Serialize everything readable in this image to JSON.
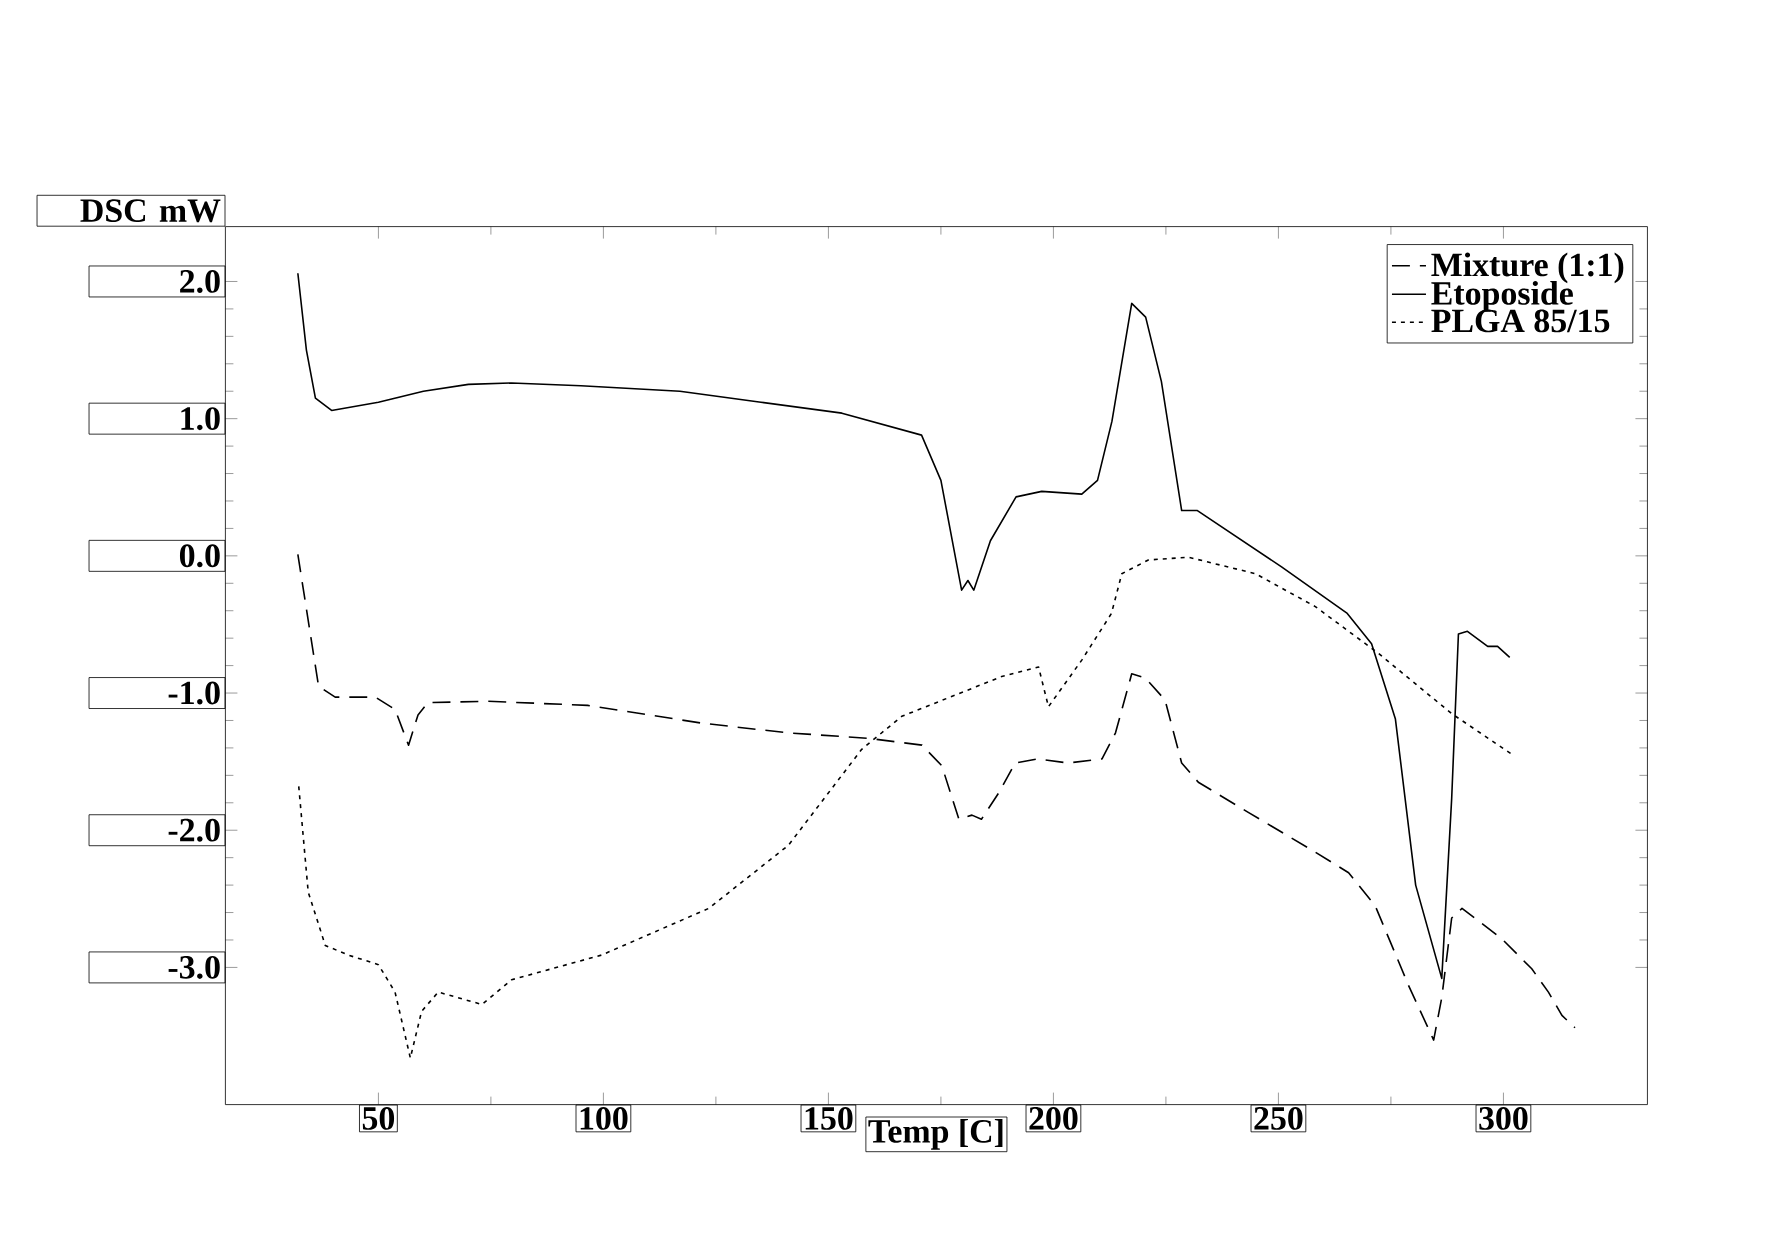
{
  "chart_data": {
    "type": "line",
    "xlabel": "Temp [C]",
    "ylabel": "DSC mW",
    "xlim": [
      16,
      332
    ],
    "ylim": [
      -4.0,
      2.4
    ],
    "xticks": [
      50,
      100,
      150,
      200,
      250,
      300
    ],
    "yticks": [
      {
        "value": -3,
        "label": "-3.0"
      },
      {
        "value": -2,
        "label": "-2.0"
      },
      {
        "value": -1,
        "label": "-1.0"
      },
      {
        "value": 0,
        "label": "0.0"
      },
      {
        "value": 1,
        "label": "1.0"
      },
      {
        "value": 2,
        "label": "2.0"
      }
    ],
    "legend": "top right",
    "grid": false,
    "marker": "none",
    "series": [
      {
        "name": "Mixture (1:1)",
        "color": "#000000",
        "line_style": "dashed",
        "x": [
          32.1,
          36.7,
          40.4,
          49.3,
          53.7,
          56.7,
          58.8,
          61,
          74.3,
          96.5,
          122,
          141,
          158.8,
          170.8,
          175.2,
          179,
          181.9,
          184,
          187.8,
          191.5,
          196.5,
          203.2,
          210.8,
          213.8,
          217.4,
          220.4,
          224.8,
          228.5,
          232.2,
          243.3,
          258.2,
          265.6,
          271.5,
          278.9,
          284.5,
          286.3,
          288.5,
          290.8,
          299.6,
          306.3,
          310,
          313,
          315.9
        ],
        "values": [
          0.01,
          -0.95,
          -1.03,
          -1.03,
          -1.12,
          -1.38,
          -1.16,
          -1.07,
          -1.06,
          -1.09,
          -1.22,
          -1.29,
          -1.33,
          -1.38,
          -1.53,
          -1.92,
          -1.89,
          -1.92,
          -1.73,
          -1.51,
          -1.48,
          -1.51,
          -1.48,
          -1.29,
          -0.86,
          -0.89,
          -1.05,
          -1.51,
          -1.65,
          -1.87,
          -2.16,
          -2.31,
          -2.55,
          -3.13,
          -3.53,
          -3.22,
          -2.64,
          -2.57,
          -2.79,
          -3.01,
          -3.18,
          -3.35,
          -3.44
        ]
      },
      {
        "name": "Etoposide",
        "color": "#000000",
        "line_style": "solid",
        "x": [
          32.1,
          34,
          36,
          39.6,
          50,
          60,
          70,
          79.6,
          95,
          117,
          135,
          153,
          170.7,
          175,
          179.6,
          181,
          182.3,
          186,
          191.7,
          197.4,
          206.3,
          209.8,
          213,
          217.4,
          220.5,
          224,
          228.5,
          232,
          250.7,
          265.3,
          270.7,
          276,
          280.5,
          286.3,
          288.5,
          290,
          292,
          296.5,
          298.7,
          301.4
        ],
        "values": [
          2.06,
          1.5,
          1.15,
          1.06,
          1.12,
          1.2,
          1.25,
          1.26,
          1.24,
          1.2,
          1.12,
          1.04,
          0.88,
          0.55,
          -0.25,
          -0.18,
          -0.25,
          0.11,
          0.43,
          0.47,
          0.45,
          0.55,
          0.98,
          1.84,
          1.74,
          1.27,
          0.33,
          0.33,
          -0.08,
          -0.42,
          -0.64,
          -1.19,
          -2.4,
          -3.08,
          -1.77,
          -0.57,
          -0.55,
          -0.66,
          -0.66,
          -0.74
        ]
      },
      {
        "name": "PLGA 85/15",
        "color": "#000000",
        "line_style": "dotted",
        "x": [
          32.3,
          34.4,
          38.2,
          43.3,
          50,
          53.7,
          57.1,
          59.6,
          63.3,
          73,
          79.6,
          99.6,
          123.4,
          141.1,
          157.4,
          166.3,
          188.5,
          196.7,
          198.9,
          206.3,
          212.9,
          215.2,
          221.1,
          230,
          244.9,
          258.2,
          272.2,
          288.5,
          301.6
        ],
        "values": [
          -1.68,
          -2.45,
          -2.84,
          -2.91,
          -2.98,
          -3.18,
          -3.66,
          -3.32,
          -3.18,
          -3.27,
          -3.09,
          -2.91,
          -2.57,
          -2.11,
          -1.41,
          -1.17,
          -0.88,
          -0.81,
          -1.1,
          -0.76,
          -0.42,
          -0.13,
          -0.03,
          -0.01,
          -0.13,
          -0.37,
          -0.71,
          -1.15,
          -1.44
        ]
      }
    ]
  }
}
